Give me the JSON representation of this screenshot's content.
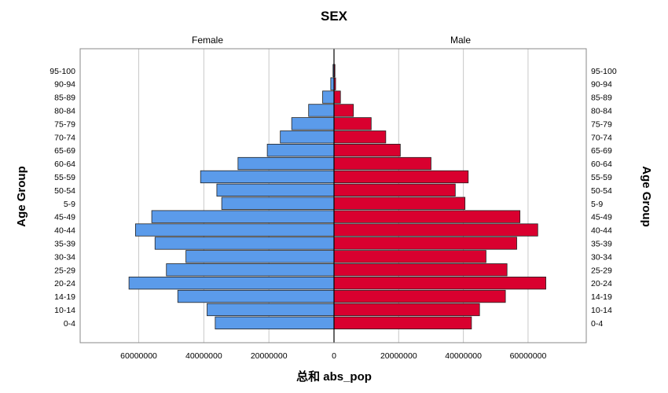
{
  "chart_data": {
    "type": "bar",
    "orientation": "horizontal-pyramid",
    "title": "SEX",
    "xlabel": "总和 abs_pop",
    "ylabel": "Age Group",
    "categories": [
      "95-100",
      "90-94",
      "85-89",
      "80-84",
      "75-79",
      "70-74",
      "65-69",
      "60-64",
      "55-59",
      "50-54",
      "5-9",
      "45-49",
      "40-44",
      "35-39",
      "30-34",
      "25-29",
      "20-24",
      "14-19",
      "10-14",
      "0-4"
    ],
    "series": [
      {
        "name": "Female",
        "color": "#5b9bea",
        "values": [
          300000,
          1000000,
          3500000,
          7800000,
          13000000,
          16500000,
          20500000,
          29500000,
          41000000,
          36000000,
          34500000,
          56000000,
          61000000,
          55000000,
          45500000,
          51500000,
          63000000,
          48000000,
          39000000,
          36500000
        ]
      },
      {
        "name": "Male",
        "color": "#d9002f",
        "values": [
          300000,
          500000,
          2000000,
          6000000,
          11500000,
          16000000,
          20500000,
          30000000,
          41500000,
          37500000,
          40500000,
          57500000,
          63000000,
          56500000,
          47000000,
          53500000,
          65500000,
          53000000,
          45000000,
          42500000
        ]
      }
    ],
    "xticks": {
      "female": [
        "60000000",
        "40000000",
        "20000000",
        "0"
      ],
      "male": [
        "20000000",
        "40000000",
        "60000000"
      ]
    },
    "xlim": [
      0,
      78000000
    ],
    "grid": true,
    "legend": "none"
  }
}
